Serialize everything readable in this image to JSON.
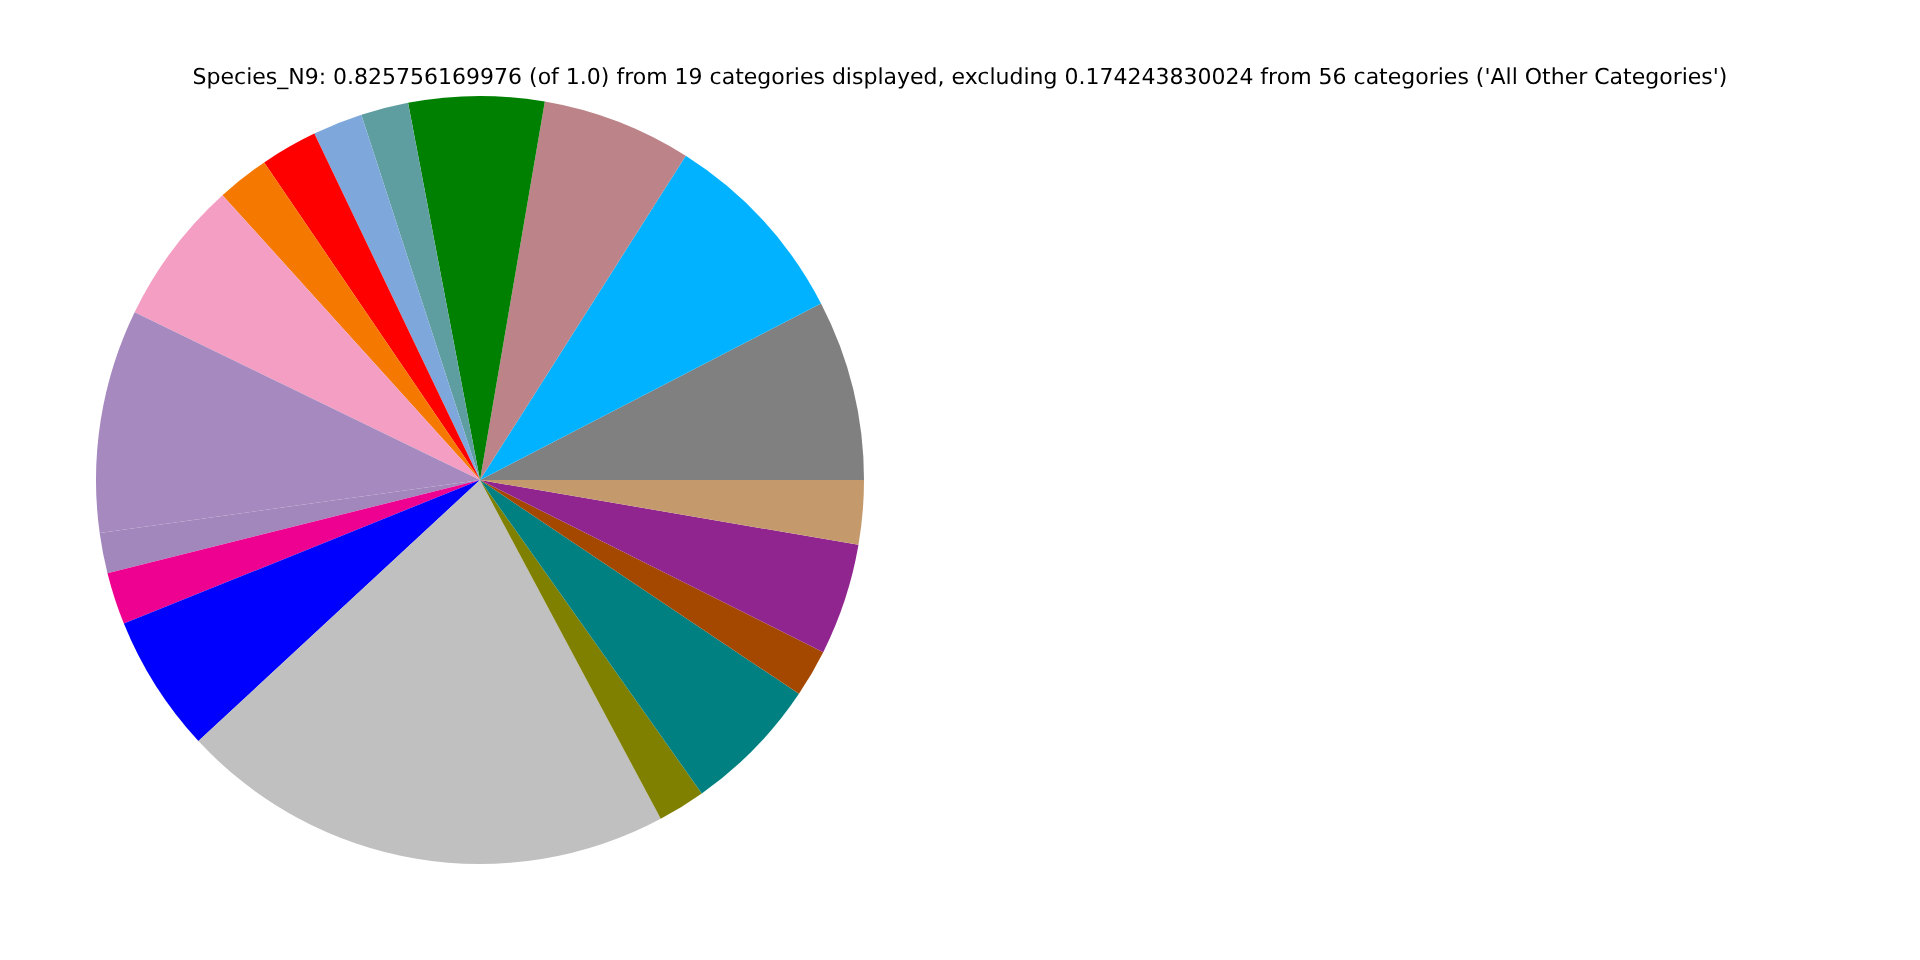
{
  "chart_data": {
    "type": "pie",
    "title": "Species_N9: 0.825756169976 (of 1.0) from 19 categories displayed, excluding 0.174243830024 from 56 categories ('All Other Categories')",
    "categories": [
      null,
      null,
      null,
      null,
      null,
      null,
      null,
      null,
      null,
      null,
      null,
      null,
      null,
      null,
      null,
      null,
      null,
      null,
      null
    ],
    "values": [
      7.6,
      8.4,
      6.3,
      5.7,
      2.0,
      2.1,
      2.4,
      2.2,
      6.1,
      9.4,
      1.7,
      2.2,
      5.8,
      20.9,
      2.0,
      5.8,
      2.0,
      4.7,
      2.7
    ],
    "colors": [
      "#808080",
      "#00b2ff",
      "#bc8388",
      "#008000",
      "#5f9ea0",
      "#7ea8dc",
      "#ff0000",
      "#f57900",
      "#f49ec4",
      "#a689bf",
      "#a287bd",
      "#ee0090",
      "#0000ff",
      "#c0c0c0",
      "#808000",
      "#008080",
      "#a44800",
      "#912590",
      "#c49a6c"
    ],
    "legend": false
  }
}
